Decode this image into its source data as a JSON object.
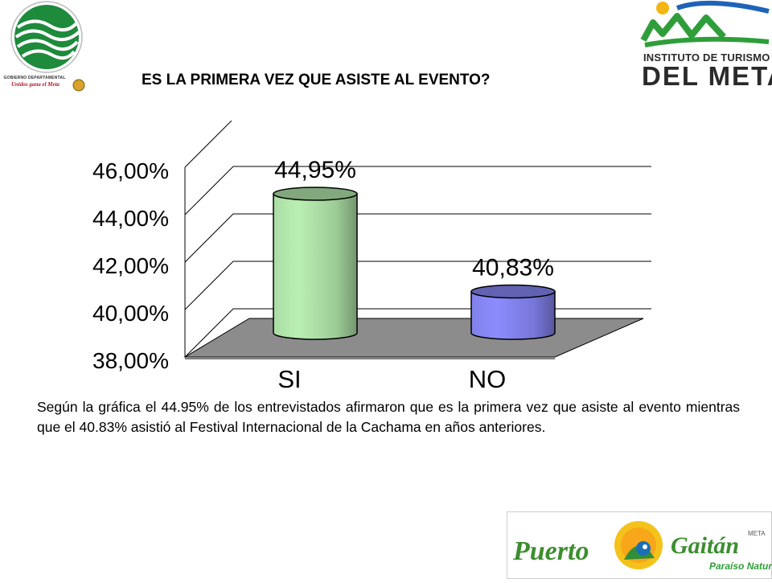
{
  "title": "ES LA PRIMERA VEZ QUE ASISTE AL EVENTO?",
  "logos": {
    "left_caption_1": "GOBIERNO DEPARTAMENTAL",
    "left_caption_2": "Unidos gana el Meta",
    "right_line_1": "INSTITUTO DE TURISMO",
    "right_line_2": "DEL META",
    "bottom_word_1": "Puerto",
    "bottom_word_2": "Gaitán",
    "bottom_tag_meta": "META",
    "bottom_tag_sub": "Paraíso Natural"
  },
  "chart_data": {
    "type": "bar",
    "title": "",
    "xlabel": "",
    "ylabel": "",
    "categories": [
      "SI",
      "NO"
    ],
    "values": [
      44.95,
      40.83
    ],
    "data_labels": [
      "44,95%",
      "40,83%"
    ],
    "yticks": [
      "38,00%",
      "40,00%",
      "42,00%",
      "44,00%",
      "46,00%"
    ],
    "ylim": [
      38,
      46
    ],
    "grid": true,
    "legend": "none",
    "bar_colors": [
      "#b9f0b2",
      "#8c8cff"
    ],
    "floor_color": "#8c8c8c"
  },
  "caption": "Según la gráfica el 44.95% de los entrevistados afirmaron que es la primera vez que asiste al evento mientras que el 40.83% asistió al Festival Internacional de la Cachama en años anteriores."
}
